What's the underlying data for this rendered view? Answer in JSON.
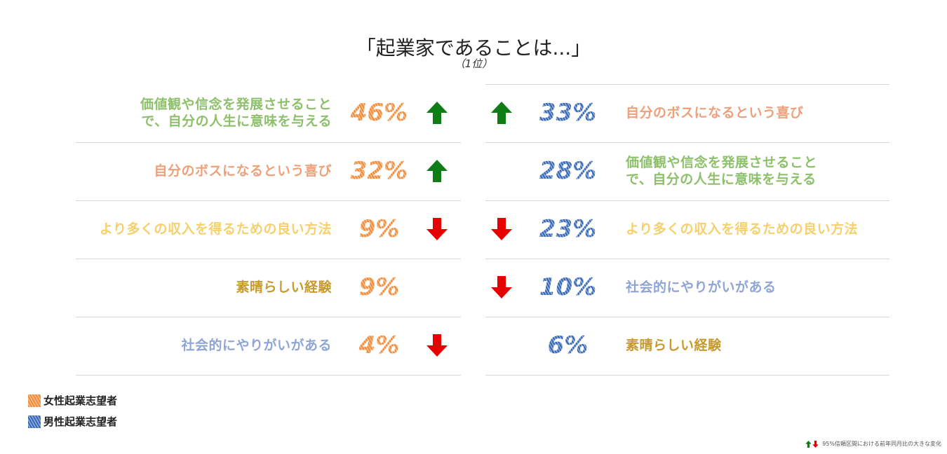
{
  "title": "「起業家であることは...」",
  "subtitle": "（1位）",
  "colors": {
    "female": "#f28a3c",
    "male": "#3f6fb7",
    "up_arrow": "#0f7d16",
    "down_arrow": "#e60000",
    "divider": "#d6d6d6"
  },
  "chart_data": {
    "type": "table",
    "title": "「起業家であることは...」",
    "subtitle": "（1位）",
    "series": [
      {
        "name": "女性起業志望者",
        "rows": [
          {
            "label": "価値観や信念を発展させること\nで、自分の人生に意味を与える",
            "label_color": "#8dc06b",
            "value": "46%",
            "change": "up"
          },
          {
            "label": "自分のボスになるという喜び",
            "label_color": "#eea07a",
            "value": "32%",
            "change": "up"
          },
          {
            "label": "より多くの収入を得るための良い方法",
            "label_color": "#f5d06c",
            "value": "9%",
            "change": "down"
          },
          {
            "label": "素晴らしい経験",
            "label_color": "#c79a2d",
            "value": "9%",
            "change": "none"
          },
          {
            "label": "社会的にやりがいがある",
            "label_color": "#8fa5d6",
            "value": "4%",
            "change": "down"
          }
        ]
      },
      {
        "name": "男性起業志望者",
        "rows": [
          {
            "label": "自分のボスになるという喜び",
            "label_color": "#eea07a",
            "value": "33%",
            "change": "up"
          },
          {
            "label": "価値観や信念を発展させること\nで、自分の人生に意味を与える",
            "label_color": "#8dc06b",
            "value": "28%",
            "change": "none"
          },
          {
            "label": "より多くの収入を得るための良い方法",
            "label_color": "#f5d06c",
            "value": "23%",
            "change": "down"
          },
          {
            "label": "社会的にやりがいがある",
            "label_color": "#8fa5d6",
            "value": "10%",
            "change": "down"
          },
          {
            "label": "素晴らしい経験",
            "label_color": "#c79a2d",
            "value": "6%",
            "change": "none"
          }
        ]
      }
    ]
  },
  "legend": {
    "female": "女性起業志望者",
    "male": "男性起業志望者"
  },
  "footnote": "95%信頼区間における前年同月比の大きな変化"
}
